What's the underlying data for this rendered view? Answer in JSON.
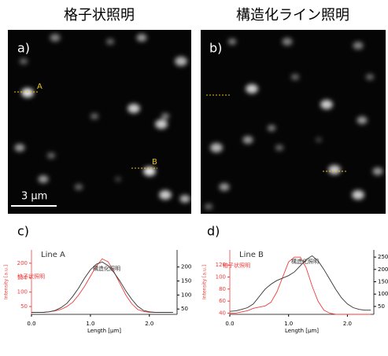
{
  "headings": [
    "格子状照明",
    "構造化ライン照明"
  ],
  "panels": {
    "a": "a)",
    "b": "b)",
    "c": "c)",
    "d": "d)"
  },
  "image_labels": {
    "A": "A",
    "B": "B",
    "scale_bar": "3 µm"
  },
  "chart_data": [
    {
      "type": "line",
      "title": "Line A",
      "xlabel": "Length [µm]",
      "ylabel": "Intensity [a.u.]",
      "x": [
        0,
        0.1,
        0.2,
        0.3,
        0.4,
        0.5,
        0.6,
        0.7,
        0.8,
        0.9,
        1.0,
        1.1,
        1.2,
        1.3,
        1.4,
        1.5,
        1.6,
        1.7,
        1.8,
        1.9,
        2.0,
        2.1,
        2.2,
        2.3,
        2.4
      ],
      "xlim": [
        0,
        2.47
      ],
      "xticks": [
        {
          "value": 0,
          "label": "0.0"
        },
        {
          "value": 1,
          "label": "1.0"
        },
        {
          "value": 2,
          "label": "2.0"
        }
      ],
      "ylim": [
        23,
        246
      ],
      "yticks": [
        50,
        100,
        150,
        200
      ],
      "y2lim": [
        31,
        261
      ],
      "y2ticks": [
        50,
        100,
        150,
        200
      ],
      "series": [
        {
          "name": "格子状照明",
          "color": "#f03c3c",
          "axis": "y",
          "values": [
            30,
            30,
            30,
            32,
            35,
            40,
            50,
            65,
            90,
            120,
            155,
            190,
            215,
            205,
            170,
            130,
            90,
            60,
            40,
            33,
            30,
            30,
            30,
            30,
            30
          ]
        },
        {
          "name": "構造化照明",
          "color": "#333333",
          "axis": "y2",
          "values": [
            38,
            38,
            38,
            40,
            45,
            55,
            70,
            95,
            125,
            160,
            190,
            210,
            218,
            205,
            180,
            150,
            115,
            85,
            60,
            45,
            40,
            38,
            38,
            38,
            38
          ]
        }
      ]
    },
    {
      "type": "line",
      "title": "Line B",
      "xlabel": "Length [µm]",
      "ylabel": "Intensity [a.u.]",
      "x": [
        0,
        0.1,
        0.2,
        0.3,
        0.4,
        0.5,
        0.6,
        0.7,
        0.8,
        0.9,
        1.0,
        1.1,
        1.2,
        1.3,
        1.4,
        1.5,
        1.6,
        1.7,
        1.8,
        1.9,
        2.0,
        2.1,
        2.2,
        2.3,
        2.4
      ],
      "xlim": [
        0,
        2.45
      ],
      "xticks": [
        {
          "value": 0,
          "label": "0.0"
        },
        {
          "value": 1,
          "label": "1.0"
        },
        {
          "value": 2,
          "label": "2.0"
        }
      ],
      "ylim": [
        38,
        145
      ],
      "yticks": [
        40,
        60,
        80,
        100,
        120
      ],
      "y2lim": [
        18,
        279
      ],
      "y2ticks": [
        50,
        100,
        150,
        200,
        250
      ],
      "series": [
        {
          "name": "格子状照明",
          "color": "#f03c3c",
          "axis": "y",
          "values": [
            40,
            40,
            42,
            44,
            48,
            50,
            52,
            58,
            75,
            100,
            125,
            133,
            133,
            115,
            85,
            60,
            45,
            40,
            38,
            38,
            38,
            38,
            38,
            38,
            38
          ]
        },
        {
          "name": "構造化照明",
          "color": "#333333",
          "axis": "y2",
          "values": [
            30,
            32,
            38,
            45,
            60,
            90,
            120,
            140,
            155,
            165,
            175,
            190,
            215,
            240,
            255,
            235,
            200,
            160,
            120,
            85,
            60,
            45,
            38,
            35,
            35
          ]
        }
      ]
    }
  ]
}
